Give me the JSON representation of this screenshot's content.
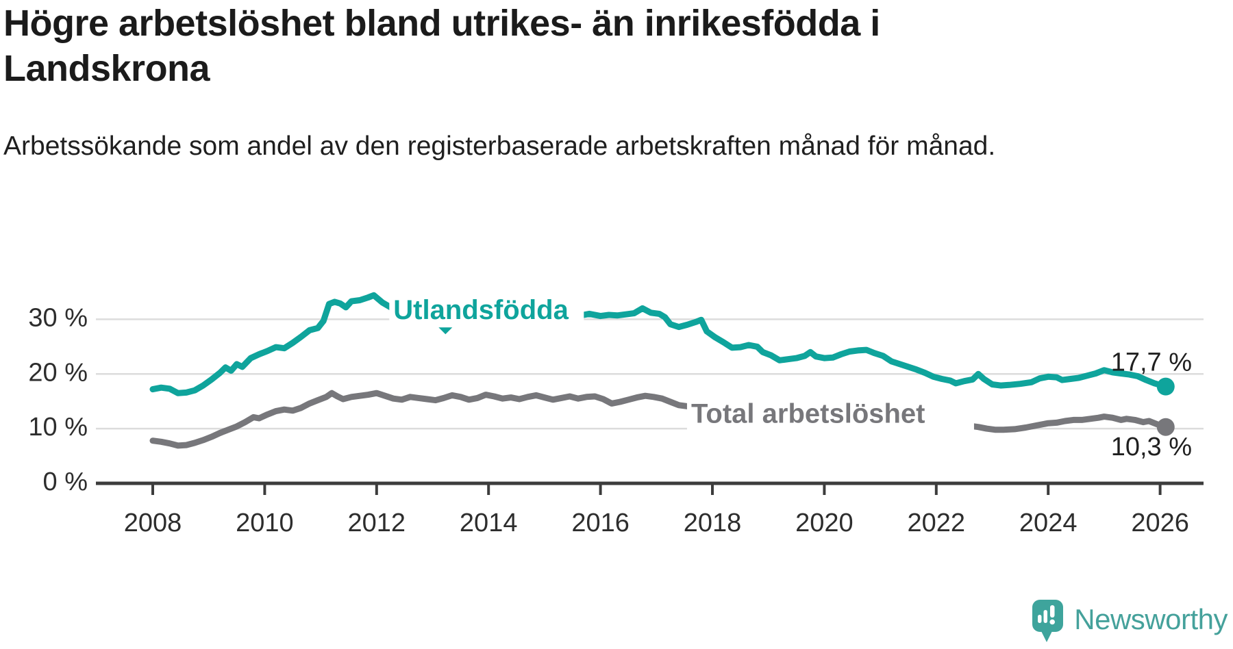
{
  "title": "Högre arbetslöshet bland utrikes- än inrikesfödda i Landskrona",
  "subtitle": "Arbetssökande som andel av den registerbaserade arbetskraften månad för månad.",
  "branding": {
    "logo_text": "Newsworthy",
    "logo_color": "#3ea49c",
    "logo_icon": "speech-bubble-bar-chart-exclamation"
  },
  "colors": {
    "series_foreign_born": "#0fa49c",
    "series_total": "#77777b",
    "grid": "#dcdcdc",
    "axis": "#3c3c3c",
    "text": "#1f1f1f"
  },
  "chart_data": {
    "type": "line",
    "title": "Högre arbetslöshet bland utrikes- än inrikesfödda i Landskrona",
    "subtitle": "Arbetssökande som andel av den registerbaserade arbetskraften månad för månad.",
    "unit": "%",
    "grid": true,
    "x_axis": {
      "range": [
        2007.0,
        2026.8
      ],
      "ticks": [
        2008,
        2010,
        2012,
        2014,
        2016,
        2018,
        2020,
        2022,
        2024,
        2026
      ]
    },
    "y_axis": {
      "range": [
        0,
        36
      ],
      "ticks": [
        0,
        10,
        20,
        30
      ],
      "tick_suffix": " %"
    },
    "series": [
      {
        "name": "Utlandsfödda",
        "color": "#0fa49c",
        "end_label": "17,7 %",
        "end_value": 17.7,
        "label_anchor_year": 2012.3,
        "label_anchor_value": 31.4,
        "points": [
          [
            2008.0,
            17.2
          ],
          [
            2008.15,
            17.5
          ],
          [
            2008.3,
            17.3
          ],
          [
            2008.45,
            16.5
          ],
          [
            2008.6,
            16.6
          ],
          [
            2008.75,
            17.0
          ],
          [
            2008.9,
            17.9
          ],
          [
            2009.05,
            19.0
          ],
          [
            2009.2,
            20.2
          ],
          [
            2009.3,
            21.2
          ],
          [
            2009.4,
            20.6
          ],
          [
            2009.5,
            21.8
          ],
          [
            2009.6,
            21.3
          ],
          [
            2009.75,
            22.9
          ],
          [
            2009.9,
            23.6
          ],
          [
            2010.05,
            24.2
          ],
          [
            2010.2,
            24.9
          ],
          [
            2010.35,
            24.7
          ],
          [
            2010.5,
            25.7
          ],
          [
            2010.65,
            26.8
          ],
          [
            2010.8,
            28.0
          ],
          [
            2010.95,
            28.4
          ],
          [
            2011.05,
            29.7
          ],
          [
            2011.15,
            32.8
          ],
          [
            2011.25,
            33.2
          ],
          [
            2011.35,
            32.9
          ],
          [
            2011.45,
            32.2
          ],
          [
            2011.55,
            33.3
          ],
          [
            2011.7,
            33.5
          ],
          [
            2011.85,
            34.0
          ],
          [
            2011.95,
            34.4
          ],
          [
            2012.1,
            33.1
          ],
          [
            2012.25,
            32.2
          ],
          [
            2012.4,
            31.8
          ],
          [
            2012.6,
            32.0
          ],
          [
            2012.8,
            31.5
          ],
          [
            2013.0,
            31.2
          ],
          [
            2013.2,
            31.4
          ],
          [
            2013.4,
            30.9
          ],
          [
            2013.6,
            30.7
          ],
          [
            2013.8,
            31.0
          ],
          [
            2014.0,
            31.6
          ],
          [
            2014.2,
            31.3
          ],
          [
            2014.4,
            31.0
          ],
          [
            2014.6,
            30.8
          ],
          [
            2014.8,
            31.1
          ],
          [
            2015.0,
            30.9
          ],
          [
            2015.2,
            30.7
          ],
          [
            2015.4,
            30.9
          ],
          [
            2015.6,
            30.6
          ],
          [
            2015.8,
            31.0
          ],
          [
            2016.0,
            30.6
          ],
          [
            2016.15,
            30.8
          ],
          [
            2016.3,
            30.7
          ],
          [
            2016.45,
            30.9
          ],
          [
            2016.6,
            31.1
          ],
          [
            2016.75,
            32.0
          ],
          [
            2016.9,
            31.2
          ],
          [
            2017.05,
            31.0
          ],
          [
            2017.15,
            30.4
          ],
          [
            2017.25,
            29.1
          ],
          [
            2017.4,
            28.6
          ],
          [
            2017.55,
            29.0
          ],
          [
            2017.7,
            29.5
          ],
          [
            2017.8,
            29.9
          ],
          [
            2017.9,
            27.8
          ],
          [
            2018.05,
            26.7
          ],
          [
            2018.2,
            25.8
          ],
          [
            2018.35,
            24.8
          ],
          [
            2018.5,
            24.9
          ],
          [
            2018.65,
            25.3
          ],
          [
            2018.8,
            25.0
          ],
          [
            2018.9,
            24.0
          ],
          [
            2019.05,
            23.4
          ],
          [
            2019.2,
            22.5
          ],
          [
            2019.35,
            22.7
          ],
          [
            2019.5,
            22.9
          ],
          [
            2019.65,
            23.3
          ],
          [
            2019.75,
            24.0
          ],
          [
            2019.85,
            23.2
          ],
          [
            2020.0,
            22.9
          ],
          [
            2020.15,
            23.0
          ],
          [
            2020.3,
            23.6
          ],
          [
            2020.45,
            24.1
          ],
          [
            2020.6,
            24.3
          ],
          [
            2020.75,
            24.4
          ],
          [
            2020.9,
            23.8
          ],
          [
            2021.05,
            23.3
          ],
          [
            2021.2,
            22.3
          ],
          [
            2021.35,
            21.8
          ],
          [
            2021.5,
            21.3
          ],
          [
            2021.65,
            20.8
          ],
          [
            2021.8,
            20.2
          ],
          [
            2021.95,
            19.5
          ],
          [
            2022.1,
            19.1
          ],
          [
            2022.25,
            18.8
          ],
          [
            2022.35,
            18.3
          ],
          [
            2022.5,
            18.7
          ],
          [
            2022.65,
            19.0
          ],
          [
            2022.75,
            20.0
          ],
          [
            2022.85,
            19.1
          ],
          [
            2023.0,
            18.1
          ],
          [
            2023.15,
            17.9
          ],
          [
            2023.3,
            18.0
          ],
          [
            2023.5,
            18.2
          ],
          [
            2023.7,
            18.5
          ],
          [
            2023.85,
            19.2
          ],
          [
            2024.0,
            19.5
          ],
          [
            2024.15,
            19.4
          ],
          [
            2024.25,
            18.9
          ],
          [
            2024.4,
            19.1
          ],
          [
            2024.55,
            19.3
          ],
          [
            2024.7,
            19.7
          ],
          [
            2024.85,
            20.1
          ],
          [
            2025.0,
            20.7
          ],
          [
            2025.15,
            20.3
          ],
          [
            2025.3,
            20.1
          ],
          [
            2025.45,
            19.9
          ],
          [
            2025.6,
            19.6
          ],
          [
            2025.75,
            18.9
          ],
          [
            2025.9,
            18.3
          ],
          [
            2026.1,
            17.7
          ]
        ]
      },
      {
        "name": "Total arbetslöshet",
        "color": "#77777b",
        "end_label": "10,3 %",
        "end_value": 10.3,
        "label_anchor_year": 2017.62,
        "label_anchor_value": 12.4,
        "points": [
          [
            2008.0,
            7.8
          ],
          [
            2008.15,
            7.6
          ],
          [
            2008.3,
            7.3
          ],
          [
            2008.45,
            6.9
          ],
          [
            2008.6,
            7.0
          ],
          [
            2008.75,
            7.4
          ],
          [
            2008.9,
            7.9
          ],
          [
            2009.05,
            8.5
          ],
          [
            2009.2,
            9.2
          ],
          [
            2009.35,
            9.8
          ],
          [
            2009.5,
            10.4
          ],
          [
            2009.65,
            11.2
          ],
          [
            2009.8,
            12.1
          ],
          [
            2009.9,
            11.9
          ],
          [
            2010.05,
            12.6
          ],
          [
            2010.2,
            13.2
          ],
          [
            2010.35,
            13.5
          ],
          [
            2010.5,
            13.3
          ],
          [
            2010.65,
            13.8
          ],
          [
            2010.8,
            14.6
          ],
          [
            2010.95,
            15.2
          ],
          [
            2011.1,
            15.8
          ],
          [
            2011.2,
            16.5
          ],
          [
            2011.3,
            15.9
          ],
          [
            2011.4,
            15.4
          ],
          [
            2011.55,
            15.8
          ],
          [
            2011.7,
            16.0
          ],
          [
            2011.85,
            16.2
          ],
          [
            2012.0,
            16.5
          ],
          [
            2012.15,
            16.0
          ],
          [
            2012.3,
            15.5
          ],
          [
            2012.45,
            15.3
          ],
          [
            2012.6,
            15.8
          ],
          [
            2012.75,
            15.6
          ],
          [
            2012.9,
            15.4
          ],
          [
            2013.05,
            15.2
          ],
          [
            2013.2,
            15.6
          ],
          [
            2013.35,
            16.1
          ],
          [
            2013.5,
            15.8
          ],
          [
            2013.65,
            15.3
          ],
          [
            2013.8,
            15.6
          ],
          [
            2013.95,
            16.2
          ],
          [
            2014.1,
            15.9
          ],
          [
            2014.25,
            15.5
          ],
          [
            2014.4,
            15.7
          ],
          [
            2014.55,
            15.4
          ],
          [
            2014.7,
            15.8
          ],
          [
            2014.85,
            16.1
          ],
          [
            2015.0,
            15.7
          ],
          [
            2015.15,
            15.3
          ],
          [
            2015.3,
            15.6
          ],
          [
            2015.45,
            15.9
          ],
          [
            2015.6,
            15.5
          ],
          [
            2015.75,
            15.8
          ],
          [
            2015.9,
            15.9
          ],
          [
            2016.05,
            15.4
          ],
          [
            2016.2,
            14.6
          ],
          [
            2016.35,
            14.9
          ],
          [
            2016.5,
            15.3
          ],
          [
            2016.65,
            15.7
          ],
          [
            2016.8,
            16.0
          ],
          [
            2016.95,
            15.8
          ],
          [
            2017.1,
            15.5
          ],
          [
            2017.25,
            14.9
          ],
          [
            2017.4,
            14.3
          ],
          [
            2017.55,
            14.1
          ],
          [
            2017.8,
            13.6
          ],
          [
            2018.1,
            13.1
          ],
          [
            2018.4,
            12.7
          ],
          [
            2018.7,
            12.4
          ],
          [
            2019.0,
            12.1
          ],
          [
            2019.3,
            11.8
          ],
          [
            2019.6,
            11.6
          ],
          [
            2019.9,
            11.4
          ],
          [
            2020.2,
            11.9
          ],
          [
            2020.5,
            12.1
          ],
          [
            2020.8,
            11.8
          ],
          [
            2021.1,
            11.3
          ],
          [
            2021.4,
            10.8
          ],
          [
            2021.7,
            10.4
          ],
          [
            2021.95,
            10.0
          ],
          [
            2022.1,
            9.9
          ],
          [
            2022.3,
            10.1
          ],
          [
            2022.45,
            10.4
          ],
          [
            2022.6,
            10.5
          ],
          [
            2022.75,
            10.3
          ],
          [
            2022.9,
            10.0
          ],
          [
            2023.05,
            9.8
          ],
          [
            2023.2,
            9.8
          ],
          [
            2023.4,
            9.9
          ],
          [
            2023.6,
            10.2
          ],
          [
            2023.8,
            10.6
          ],
          [
            2024.0,
            11.0
          ],
          [
            2024.15,
            11.1
          ],
          [
            2024.3,
            11.4
          ],
          [
            2024.45,
            11.6
          ],
          [
            2024.6,
            11.6
          ],
          [
            2024.75,
            11.8
          ],
          [
            2024.9,
            12.0
          ],
          [
            2025.0,
            12.2
          ],
          [
            2025.15,
            12.0
          ],
          [
            2025.3,
            11.6
          ],
          [
            2025.4,
            11.8
          ],
          [
            2025.55,
            11.6
          ],
          [
            2025.7,
            11.2
          ],
          [
            2025.8,
            11.4
          ],
          [
            2025.95,
            10.8
          ],
          [
            2026.1,
            10.3
          ]
        ]
      }
    ]
  }
}
